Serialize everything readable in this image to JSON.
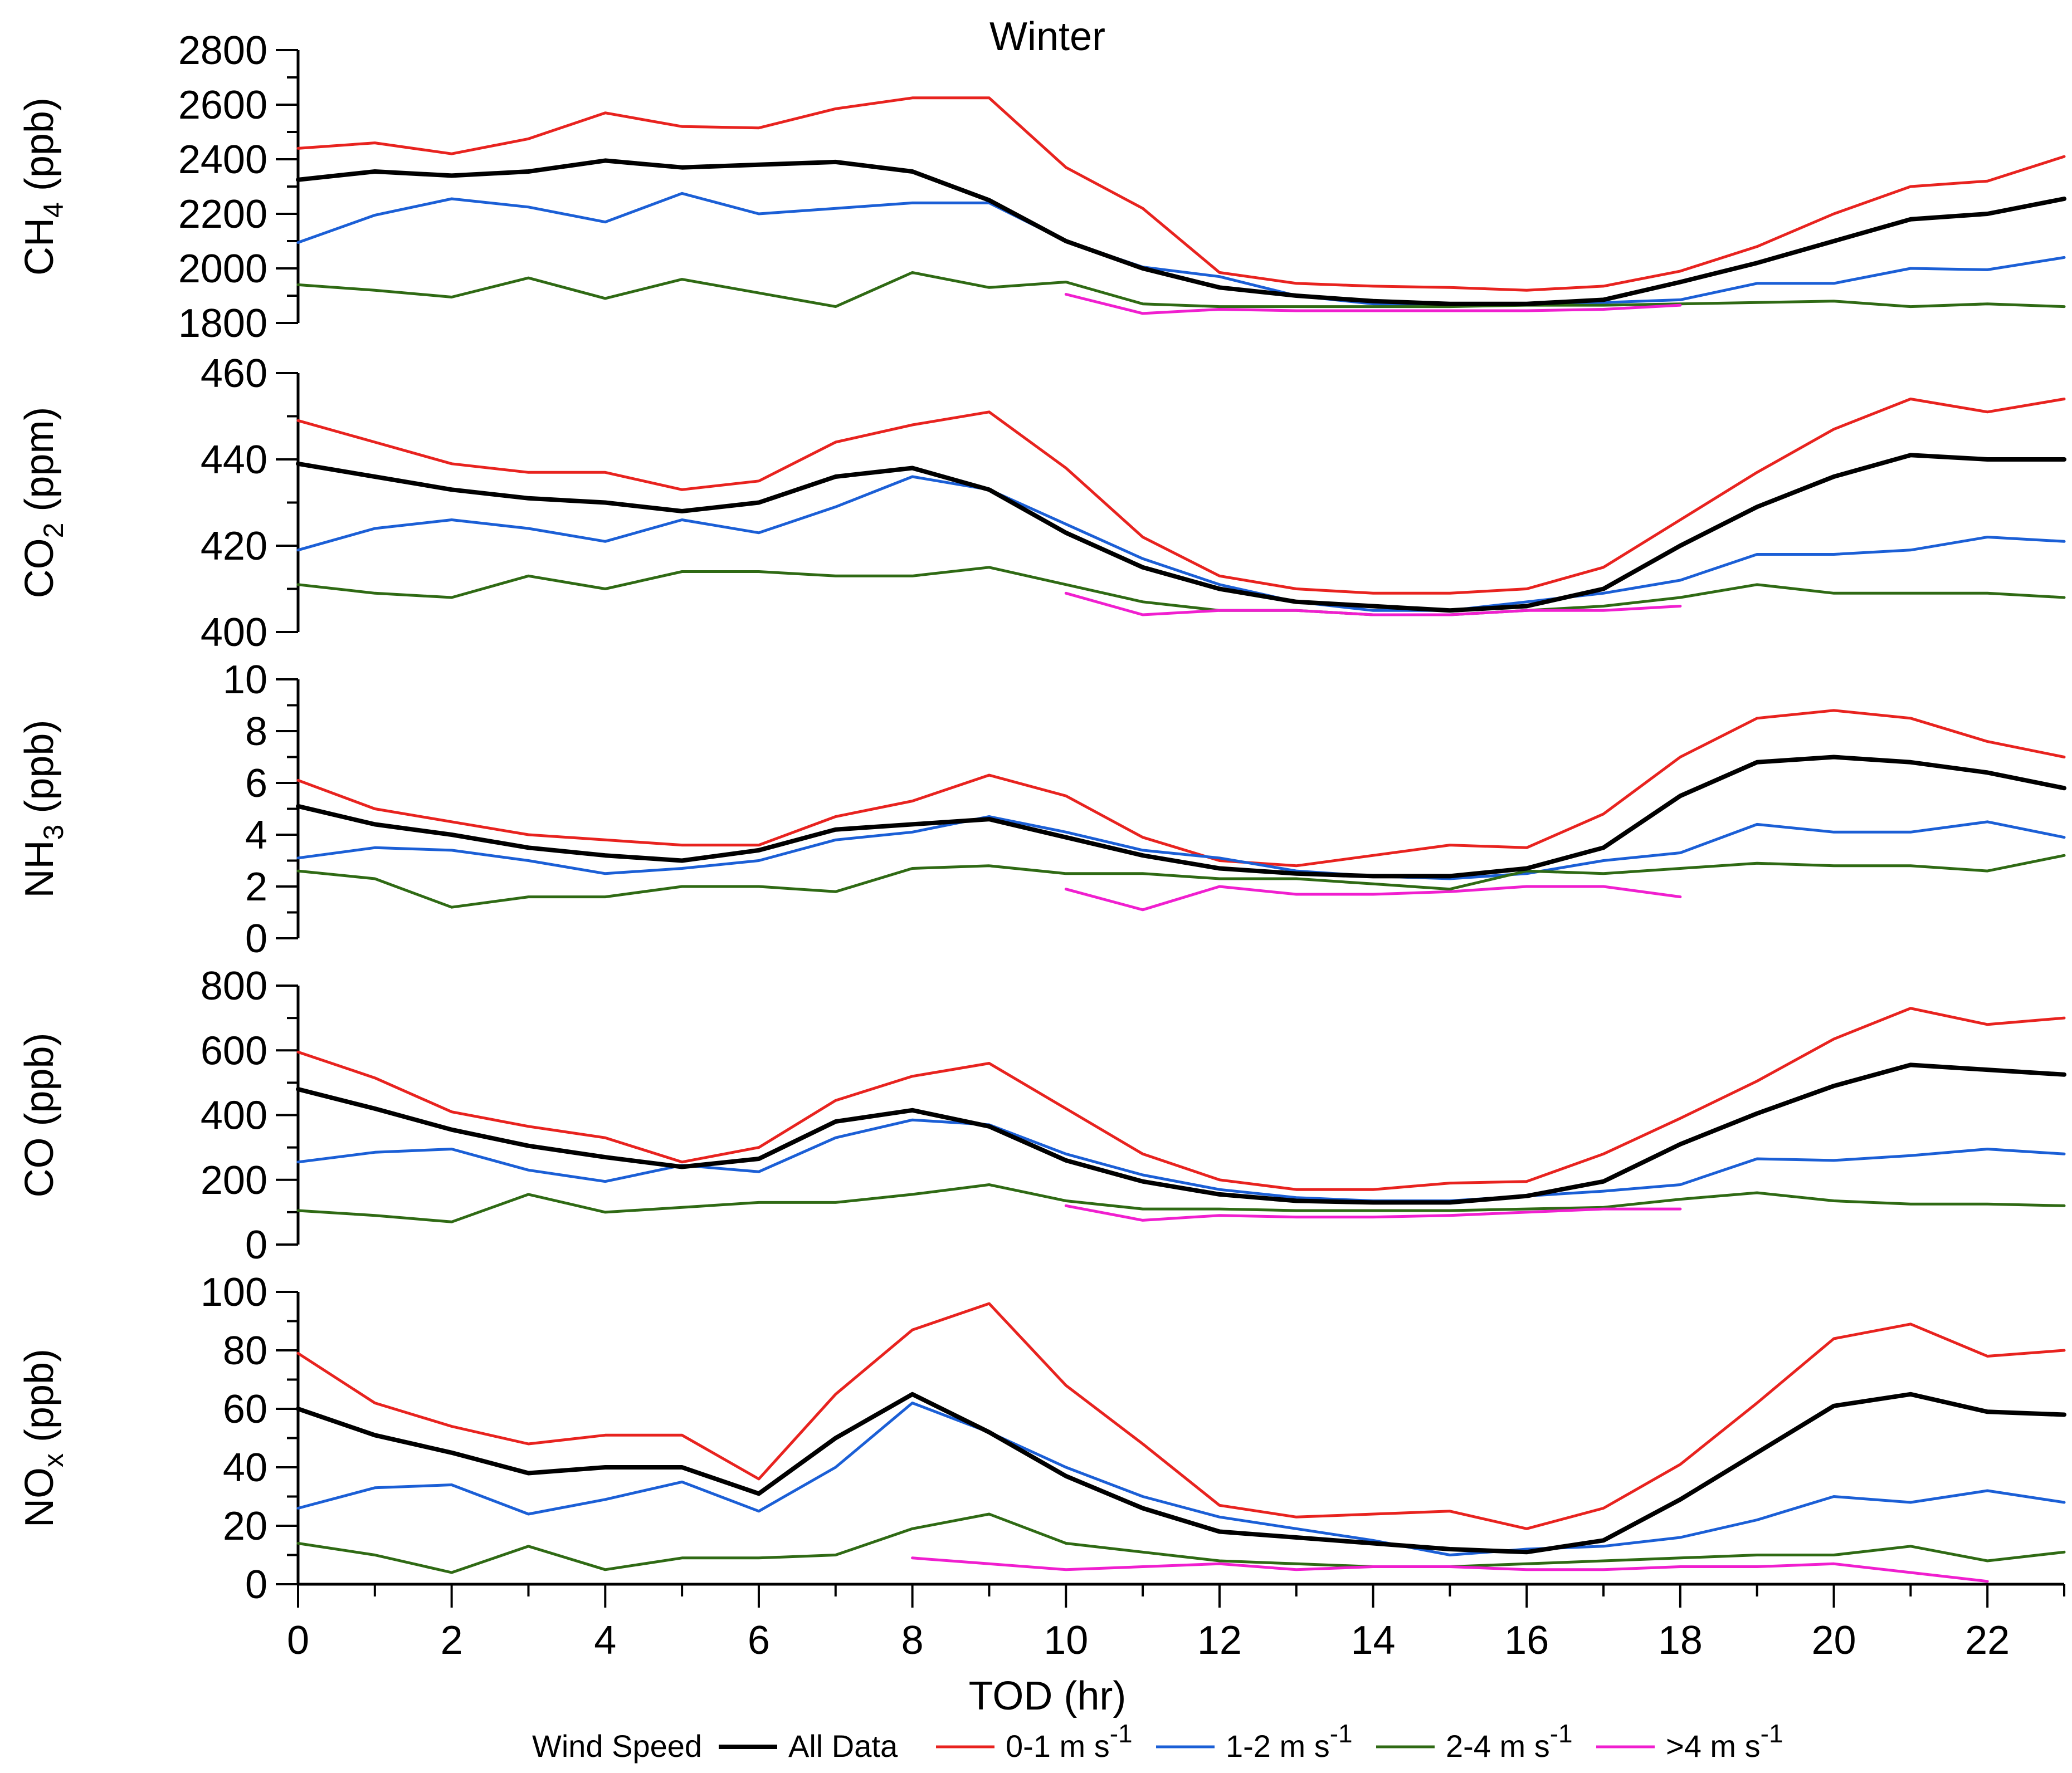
{
  "chart_data": {
    "type": "line",
    "title": "Winter",
    "xlabel": "TOD (hr)",
    "x": [
      0,
      1,
      2,
      3,
      4,
      5,
      6,
      7,
      8,
      9,
      10,
      11,
      12,
      13,
      14,
      15,
      16,
      17,
      18,
      19,
      20,
      21,
      22,
      23
    ],
    "xlim": [
      0,
      23
    ],
    "xticks": [
      0,
      2,
      4,
      6,
      8,
      10,
      12,
      14,
      16,
      18,
      20,
      22
    ],
    "xtick_labels": [
      "0",
      "2",
      "4",
      "6",
      "8",
      "10",
      "12",
      "14",
      "16",
      "18",
      "20",
      "22"
    ],
    "legend": {
      "title": "Wind Speed",
      "position": "bottom",
      "entries": [
        {
          "key": "all",
          "label": "All Data"
        },
        {
          "key": "w01",
          "label": "0-1 m s",
          "sup": "-1"
        },
        {
          "key": "w12",
          "label": "1-2 m s",
          "sup": "-1"
        },
        {
          "key": "w24",
          "label": "2-4 m s",
          "sup": "-1"
        },
        {
          "key": "w4",
          "label": ">4 m s",
          "sup": "-1"
        }
      ]
    },
    "colors": {
      "all": "#000000",
      "w01": "#e8231f",
      "w12": "#1b5fd6",
      "w24": "#2f6a14",
      "w4": "#f01fcf"
    },
    "panels": [
      {
        "species": "CH",
        "sub": "4",
        "unit": " (ppb)",
        "ylim": [
          1800,
          2800
        ],
        "yticks": [
          1800,
          2000,
          2200,
          2400,
          2600,
          2800
        ],
        "ytick_labels": [
          "1800",
          "2000",
          "2200",
          "2400",
          "2600",
          "2800"
        ],
        "series": {
          "all": [
            2325,
            2355,
            2340,
            2355,
            2395,
            2370,
            2380,
            2390,
            2355,
            2250,
            2100,
            2000,
            1930,
            1900,
            1880,
            1870,
            1870,
            1885,
            1950,
            2020,
            2100,
            2180,
            2200,
            2255
          ],
          "w01": [
            2440,
            2460,
            2420,
            2475,
            2570,
            2520,
            2515,
            2585,
            2625,
            2625,
            2370,
            2220,
            1985,
            1945,
            1935,
            1930,
            1920,
            1935,
            1990,
            2080,
            2200,
            2300,
            2320,
            2410
          ],
          "w12": [
            2095,
            2195,
            2255,
            2225,
            2170,
            2275,
            2200,
            2220,
            2240,
            2240,
            2100,
            2005,
            1970,
            1900,
            1870,
            1865,
            1870,
            1875,
            1885,
            1945,
            1945,
            2000,
            1995,
            2040
          ],
          "w24": [
            1940,
            1920,
            1895,
            1965,
            1890,
            1960,
            1910,
            1860,
            1985,
            1930,
            1950,
            1870,
            1860,
            1860,
            1860,
            1860,
            1865,
            1865,
            1870,
            1875,
            1880,
            1860,
            1870,
            1860
          ],
          "w4": [
            null,
            null,
            null,
            null,
            null,
            null,
            null,
            null,
            null,
            null,
            1905,
            1835,
            1850,
            1845,
            1845,
            1845,
            1845,
            1850,
            1865,
            null,
            null,
            null,
            null,
            null
          ]
        }
      },
      {
        "species": "CO",
        "sub": "2",
        "unit": " (ppm)",
        "ylim": [
          400,
          460
        ],
        "yticks": [
          400,
          420,
          440,
          460
        ],
        "ytick_labels": [
          "400",
          "420",
          "440",
          "460"
        ],
        "series": {
          "all": [
            439,
            436,
            433,
            431,
            430,
            428,
            430,
            436,
            438,
            433,
            423,
            415,
            410,
            407,
            406,
            405,
            406,
            410,
            420,
            429,
            436,
            441,
            440,
            440
          ],
          "w01": [
            449,
            444,
            439,
            437,
            437,
            433,
            435,
            444,
            448,
            451,
            438,
            422,
            413,
            410,
            409,
            409,
            410,
            415,
            426,
            437,
            447,
            454,
            451,
            454
          ],
          "w12": [
            419,
            424,
            426,
            424,
            421,
            426,
            423,
            429,
            436,
            433,
            425,
            417,
            411,
            407,
            405,
            405,
            407,
            409,
            412,
            418,
            418,
            419,
            422,
            421
          ],
          "w24": [
            411,
            409,
            408,
            413,
            410,
            414,
            414,
            413,
            413,
            415,
            411,
            407,
            405,
            405,
            404,
            404,
            405,
            406,
            408,
            411,
            409,
            409,
            409,
            408
          ],
          "w4": [
            null,
            null,
            null,
            null,
            null,
            null,
            null,
            null,
            null,
            null,
            409,
            404,
            405,
            405,
            404,
            404,
            405,
            405,
            406,
            null,
            null,
            null,
            null,
            null
          ]
        }
      },
      {
        "species": "NH",
        "sub": "3",
        "unit": " (ppb)",
        "ylim": [
          0,
          10
        ],
        "yticks": [
          0,
          2,
          4,
          6,
          8,
          10
        ],
        "ytick_labels": [
          "0",
          "2",
          "4",
          "6",
          "8",
          "10"
        ],
        "series": {
          "all": [
            5.1,
            4.4,
            4.0,
            3.5,
            3.2,
            3.0,
            3.4,
            4.2,
            4.4,
            4.6,
            3.9,
            3.2,
            2.7,
            2.5,
            2.4,
            2.4,
            2.7,
            3.5,
            5.5,
            6.8,
            7.0,
            6.8,
            6.4,
            5.8
          ],
          "w01": [
            6.1,
            5.0,
            4.5,
            4.0,
            3.8,
            3.6,
            3.6,
            4.7,
            5.3,
            6.3,
            5.5,
            3.9,
            3.0,
            2.8,
            3.2,
            3.6,
            3.5,
            4.8,
            7.0,
            8.5,
            8.8,
            8.5,
            7.6,
            7.0
          ],
          "w12": [
            3.1,
            3.5,
            3.4,
            3.0,
            2.5,
            2.7,
            3.0,
            3.8,
            4.1,
            4.7,
            4.1,
            3.4,
            3.1,
            2.6,
            2.4,
            2.3,
            2.5,
            3.0,
            3.3,
            4.4,
            4.1,
            4.1,
            4.5,
            3.9
          ],
          "w24": [
            2.6,
            2.3,
            1.2,
            1.6,
            1.6,
            2.0,
            2.0,
            1.8,
            2.7,
            2.8,
            2.5,
            2.5,
            2.3,
            2.3,
            2.1,
            1.9,
            2.6,
            2.5,
            2.7,
            2.9,
            2.8,
            2.8,
            2.6,
            3.2
          ],
          "w4": [
            null,
            null,
            null,
            null,
            null,
            null,
            null,
            null,
            null,
            null,
            1.9,
            1.1,
            2.0,
            1.7,
            1.7,
            1.8,
            2.0,
            2.0,
            1.6,
            null,
            null,
            null,
            null,
            null
          ]
        }
      },
      {
        "species": "CO",
        "sub": "",
        "unit": " (ppb)",
        "ylim": [
          0,
          800
        ],
        "yticks": [
          0,
          200,
          400,
          600,
          800
        ],
        "ytick_labels": [
          "0",
          "200",
          "400",
          "600",
          "800"
        ],
        "series": {
          "all": [
            480,
            420,
            355,
            305,
            270,
            240,
            265,
            380,
            415,
            365,
            260,
            195,
            155,
            135,
            130,
            130,
            150,
            195,
            310,
            405,
            490,
            555,
            540,
            525
          ],
          "w01": [
            595,
            515,
            410,
            365,
            330,
            255,
            300,
            445,
            520,
            560,
            420,
            280,
            200,
            170,
            170,
            190,
            195,
            280,
            390,
            505,
            635,
            730,
            680,
            700
          ],
          "w12": [
            255,
            285,
            295,
            230,
            195,
            245,
            225,
            330,
            385,
            370,
            280,
            215,
            170,
            145,
            135,
            135,
            150,
            165,
            185,
            265,
            260,
            275,
            295,
            280
          ],
          "w24": [
            105,
            90,
            70,
            155,
            100,
            115,
            130,
            130,
            155,
            185,
            135,
            110,
            110,
            105,
            105,
            105,
            110,
            115,
            140,
            160,
            135,
            125,
            125,
            120
          ],
          "w4": [
            null,
            null,
            null,
            null,
            null,
            null,
            null,
            null,
            null,
            null,
            120,
            75,
            90,
            85,
            85,
            90,
            100,
            110,
            110,
            null,
            null,
            null,
            null,
            null
          ]
        }
      },
      {
        "species": "NO",
        "sub": "x",
        "unit": " (ppb)",
        "ylim": [
          0,
          100
        ],
        "yticks": [
          0,
          20,
          40,
          60,
          80,
          100
        ],
        "ytick_labels": [
          "0",
          "20",
          "40",
          "60",
          "80",
          "100"
        ],
        "series": {
          "all": [
            60,
            51,
            45,
            38,
            40,
            40,
            31,
            50,
            65,
            52,
            37,
            26,
            18,
            16,
            14,
            12,
            11,
            15,
            29,
            45,
            61,
            65,
            59,
            58
          ],
          "w01": [
            79,
            62,
            54,
            48,
            51,
            51,
            36,
            65,
            87,
            96,
            68,
            48,
            27,
            23,
            24,
            25,
            19,
            26,
            41,
            62,
            84,
            89,
            78,
            80
          ],
          "w12": [
            26,
            33,
            34,
            24,
            29,
            35,
            25,
            40,
            62,
            52,
            40,
            30,
            23,
            19,
            15,
            10,
            12,
            13,
            16,
            22,
            30,
            28,
            32,
            28
          ],
          "w24": [
            14,
            10,
            4,
            13,
            5,
            9,
            9,
            10,
            19,
            24,
            14,
            11,
            8,
            7,
            6,
            6,
            7,
            8,
            9,
            10,
            10,
            13,
            8,
            11
          ],
          "w4": [
            null,
            null,
            null,
            null,
            null,
            null,
            null,
            null,
            9,
            7,
            5,
            6,
            7,
            5,
            6,
            6,
            5,
            5,
            6,
            6,
            7,
            4,
            1,
            null
          ]
        }
      }
    ]
  }
}
